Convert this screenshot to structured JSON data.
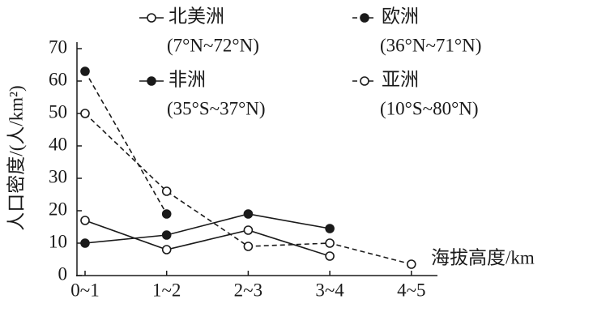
{
  "chart_data": {
    "type": "line",
    "y_label": "人口密度/(人/km²)",
    "x_label": "海拔高度/km",
    "categories": [
      "0~1",
      "1~2",
      "2~3",
      "3~4",
      "4~5"
    ],
    "series": [
      {
        "name": "北美洲",
        "range": "(7°N~72°N)",
        "color": "#1a1a1a",
        "dashed": false,
        "marker": "open",
        "values": [
          17,
          8,
          14,
          6,
          null
        ]
      },
      {
        "name": "欧洲",
        "range": "(36°N~71°N)",
        "color": "#1a1a1a",
        "dashed": true,
        "marker": "filled",
        "values": [
          63,
          19,
          null,
          null,
          null
        ]
      },
      {
        "name": "非洲",
        "range": "(35°S~37°N)",
        "color": "#1a1a1a",
        "dashed": false,
        "marker": "filled",
        "values": [
          10,
          12.5,
          19,
          14.5,
          null
        ]
      },
      {
        "name": "亚洲",
        "range": "(10°S~80°N)",
        "color": "#1a1a1a",
        "dashed": true,
        "marker": "open",
        "values": [
          50,
          26,
          9,
          10,
          3.5
        ]
      }
    ],
    "ylim": [
      0,
      70
    ],
    "yticks": [
      0,
      10,
      20,
      30,
      40,
      50,
      60,
      70
    ]
  }
}
